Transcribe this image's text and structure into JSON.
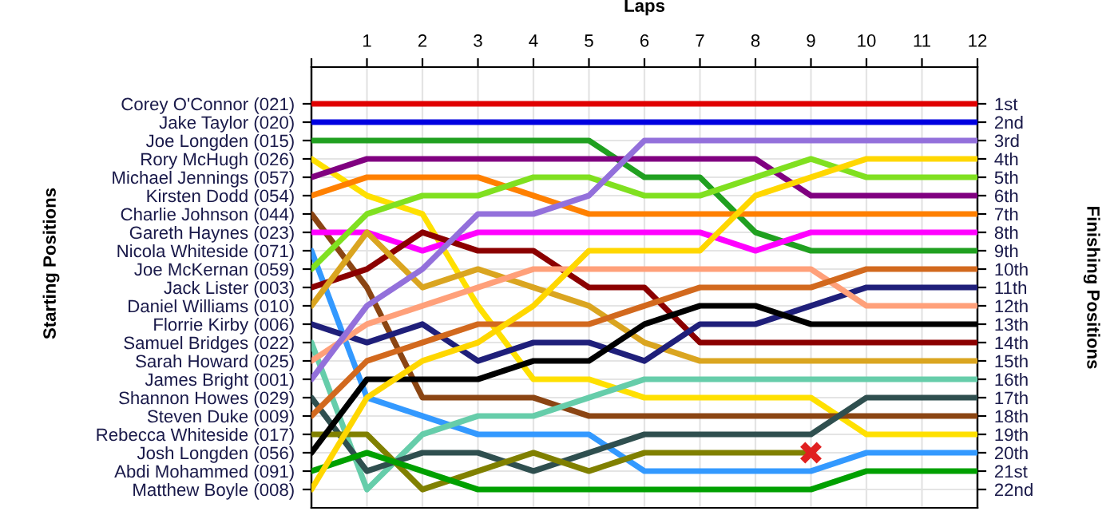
{
  "chart_data": {
    "type": "line",
    "xlabel": "Laps",
    "annotations": [
      "Starting Positions"
    ],
    "y2label": "Finishing Positions",
    "x": [
      0,
      1,
      2,
      3,
      4,
      5,
      6,
      7,
      8,
      9,
      10,
      11,
      12
    ],
    "xlim": [
      0,
      12
    ],
    "xticks": [
      {
        "value": 0,
        "label": null
      },
      1,
      2,
      3,
      4,
      5,
      6,
      7,
      8,
      9,
      10,
      11,
      12
    ],
    "y_categories": [
      "Corey O'Connor (021)",
      "Jake Taylor (020)",
      "Joe Longden (015)",
      "Rory McHugh (026)",
      "Michael Jennings (057)",
      "Kirsten Dodd (054)",
      "Charlie Johnson (044)",
      "Gareth Haynes (023)",
      "Nicola Whiteside (071)",
      "Joe McKernan (059)",
      "Jack Lister (003)",
      "Daniel Williams (010)",
      "Florrie Kirby (006)",
      "Samuel Bridges (022)",
      "Sarah Howard (025)",
      "James Bright (001)",
      "Shannon Howes (029)",
      "Steven Duke (009)",
      "Rebecca Whiteside (017)",
      "Josh Longden (056)",
      "Abdi Mohammed (091)",
      "Matthew Boyle (008)"
    ],
    "y2lim": [
      23,
      -1
    ],
    "y2ticks": [
      {
        "value": 1,
        "label": "1st"
      },
      {
        "value": 2,
        "label": "2nd"
      },
      {
        "value": 3,
        "label": "3rd"
      },
      {
        "value": 4,
        "label": "4th"
      },
      {
        "value": 5,
        "label": "5th"
      },
      {
        "value": 6,
        "label": "6th"
      },
      {
        "value": 7,
        "label": "7th"
      },
      {
        "value": 8,
        "label": "8th"
      },
      {
        "value": 9,
        "label": "9th"
      },
      {
        "value": 10,
        "label": "10th"
      },
      {
        "value": 11,
        "label": "11th"
      },
      {
        "value": 12,
        "label": "12th"
      },
      {
        "value": 13,
        "label": "13th"
      },
      {
        "value": 14,
        "label": "14th"
      },
      {
        "value": 15,
        "label": "15th"
      },
      {
        "value": 16,
        "label": "16th"
      },
      {
        "value": 17,
        "label": "17th"
      },
      {
        "value": 18,
        "label": "18th"
      },
      {
        "value": 19,
        "label": "19th"
      },
      {
        "value": 20,
        "label": "20th"
      },
      {
        "value": 21,
        "label": "21st"
      },
      {
        "value": 22,
        "label": "22nd"
      }
    ],
    "grid": true,
    "marker": "none",
    "line_style": "solid",
    "series": [
      {
        "axis": "y2",
        "color": "#e00000",
        "values": [
          1,
          1,
          1,
          1,
          1,
          1,
          1,
          1,
          1,
          1,
          1,
          1,
          1
        ]
      },
      {
        "axis": "y2",
        "color": "#0000e0",
        "values": [
          2,
          2,
          2,
          2,
          2,
          2,
          2,
          2,
          2,
          2,
          2,
          2,
          2
        ]
      },
      {
        "axis": "y2",
        "color": "#20a020",
        "values": [
          3,
          3,
          3,
          3,
          3,
          3,
          5,
          5,
          8,
          9,
          9,
          9,
          9
        ]
      },
      {
        "axis": "y2",
        "color": "#ffe000",
        "values": [
          4,
          6,
          7,
          12,
          16,
          16,
          17,
          17,
          17,
          17,
          19,
          19,
          19
        ]
      },
      {
        "axis": "y2",
        "color": "#800080",
        "values": [
          5,
          4,
          4,
          4,
          4,
          4,
          4,
          4,
          4,
          6,
          6,
          6,
          6
        ]
      },
      {
        "axis": "y2",
        "color": "#ff8000",
        "values": [
          6,
          5,
          5,
          5,
          6,
          7,
          7,
          7,
          7,
          7,
          7,
          7,
          7
        ]
      },
      {
        "axis": "y2",
        "color": "#8b4513",
        "values": [
          7,
          11,
          17,
          17,
          17,
          18,
          18,
          18,
          18,
          18,
          18,
          18,
          18
        ]
      },
      {
        "axis": "y2",
        "color": "#ff00ff",
        "values": [
          8,
          8,
          9,
          8,
          8,
          8,
          8,
          8,
          9,
          8,
          8,
          8,
          8
        ]
      },
      {
        "axis": "y2",
        "color": "#3399ff",
        "values": [
          9,
          17,
          18,
          19,
          19,
          19,
          21,
          21,
          21,
          21,
          20,
          20,
          20
        ]
      },
      {
        "axis": "y2",
        "color": "#80e020",
        "values": [
          10,
          7,
          6,
          6,
          5,
          5,
          6,
          6,
          5,
          4,
          5,
          5,
          5
        ]
      },
      {
        "axis": "y2",
        "color": "#8b0000",
        "values": [
          11,
          10,
          8,
          9,
          9,
          11,
          11,
          14,
          14,
          14,
          14,
          14,
          14
        ]
      },
      {
        "axis": "y2",
        "color": "#daa520",
        "values": [
          12,
          8,
          11,
          10,
          11,
          12,
          14,
          15,
          15,
          15,
          15,
          15,
          15
        ]
      },
      {
        "axis": "y2",
        "color": "#1f1f7a",
        "values": [
          13,
          14,
          13,
          15,
          14,
          14,
          15,
          13,
          13,
          12,
          11,
          11,
          11
        ]
      },
      {
        "axis": "y2",
        "color": "#66cdaa",
        "values": [
          14,
          22,
          19,
          18,
          18,
          17,
          16,
          16,
          16,
          16,
          16,
          16,
          16
        ]
      },
      {
        "axis": "y2",
        "color": "#ffa07a",
        "values": [
          15,
          13,
          12,
          11,
          10,
          10,
          10,
          10,
          10,
          10,
          12,
          12,
          12
        ]
      },
      {
        "axis": "y2",
        "color": "#9370db",
        "values": [
          16,
          12,
          10,
          7,
          7,
          6,
          3,
          3,
          3,
          3,
          3,
          3,
          3
        ]
      },
      {
        "axis": "y2",
        "color": "#2f4f4f",
        "values": [
          17,
          21,
          20,
          20,
          21,
          20,
          19,
          19,
          19,
          19,
          17,
          17,
          17
        ]
      },
      {
        "axis": "y2",
        "color": "#d2691e",
        "values": [
          18,
          15,
          14,
          13,
          13,
          13,
          12,
          11,
          11,
          11,
          10,
          10,
          10
        ]
      },
      {
        "axis": "y2",
        "color": "#808000",
        "values": [
          19,
          19,
          22,
          21,
          20,
          21,
          20,
          20,
          20,
          20,
          null,
          null,
          null
        ]
      },
      {
        "axis": "y2",
        "color": "#000000",
        "values": [
          20,
          16,
          16,
          16,
          15,
          15,
          13,
          12,
          12,
          13,
          13,
          13,
          13
        ]
      },
      {
        "axis": "y2",
        "color": "#00a000",
        "values": [
          21,
          20,
          21,
          22,
          22,
          22,
          22,
          22,
          22,
          22,
          21,
          21,
          21
        ]
      },
      {
        "axis": "y2",
        "color": "#ffd700",
        "values": [
          22,
          17,
          15,
          14,
          12,
          9,
          9,
          9,
          6,
          5,
          4,
          4,
          4
        ]
      },
      {
        "axis": "y2",
        "type": "scatter",
        "marker": "cross",
        "color": "#e02020",
        "x": [
          9
        ],
        "values": [
          20
        ]
      }
    ]
  }
}
